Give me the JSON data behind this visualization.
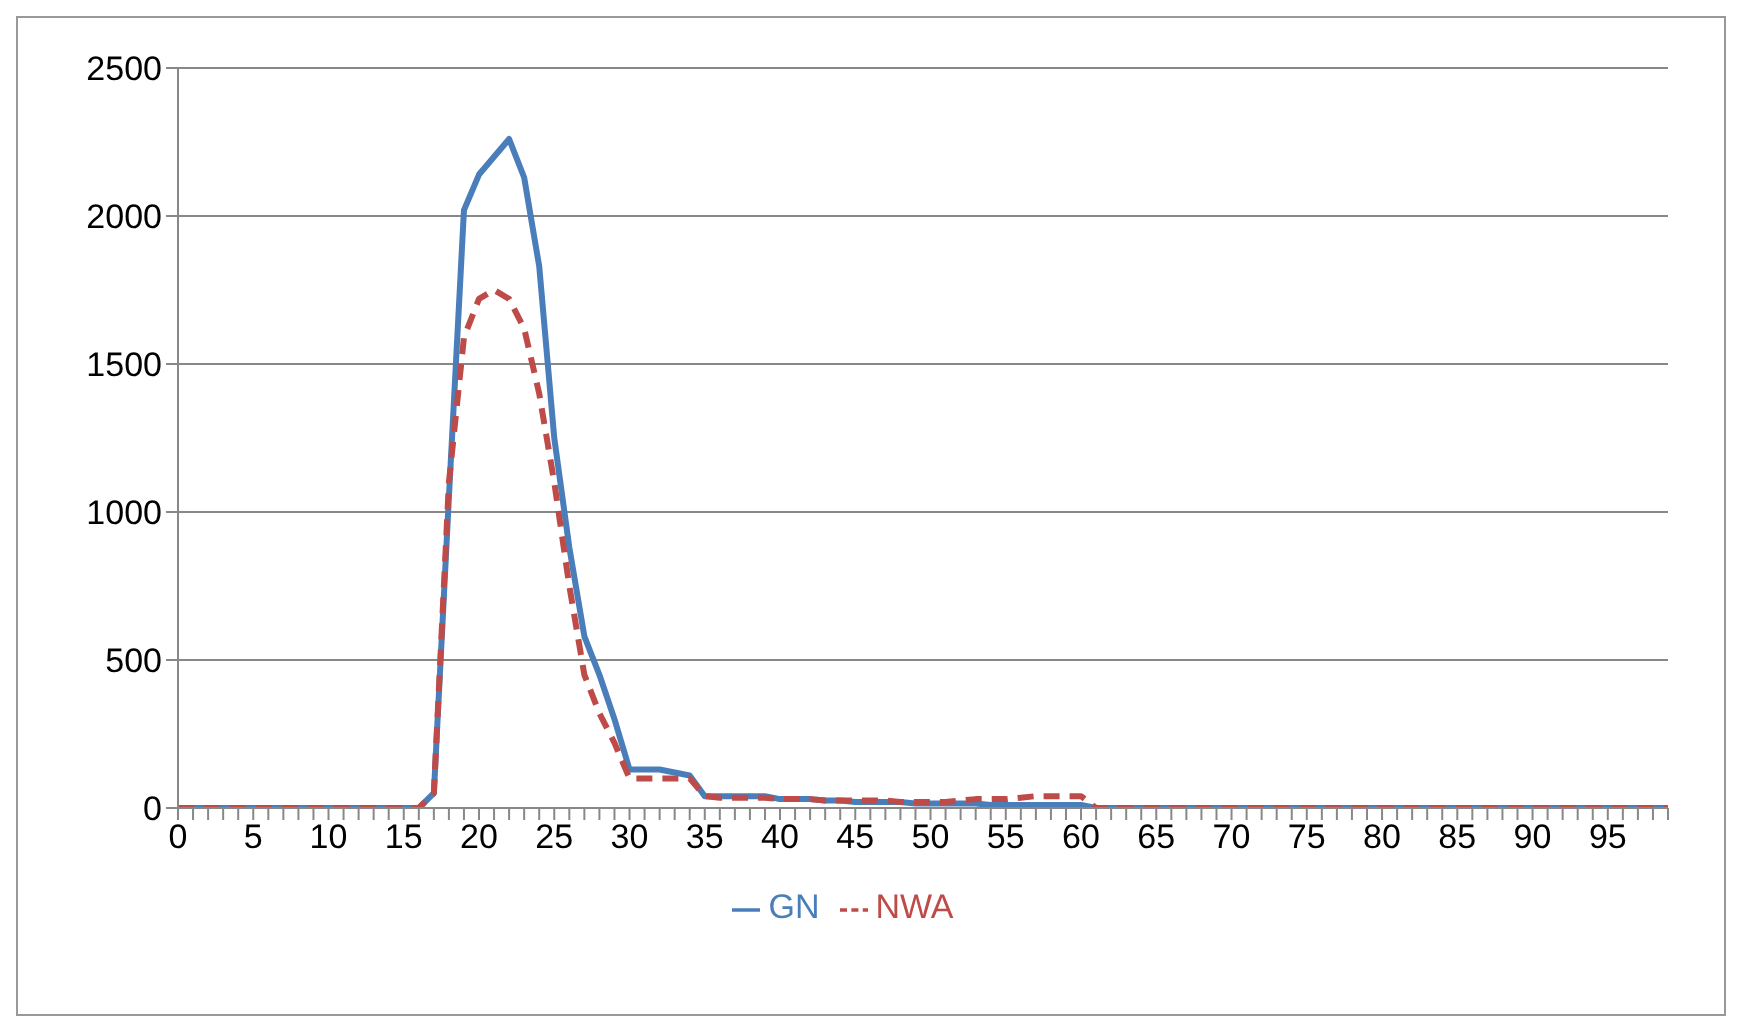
{
  "chart_data": {
    "type": "line",
    "categories": [
      "0",
      null,
      null,
      null,
      null,
      "5",
      null,
      null,
      null,
      null,
      "10",
      null,
      null,
      null,
      null,
      "15",
      null,
      null,
      null,
      null,
      "20",
      null,
      null,
      null,
      null,
      "25",
      null,
      null,
      null,
      null,
      "30",
      null,
      null,
      null,
      null,
      "35",
      null,
      null,
      null,
      null,
      "40",
      null,
      null,
      null,
      null,
      "45",
      null,
      null,
      null,
      null,
      "50",
      null,
      null,
      null,
      null,
      "55",
      null,
      null,
      null,
      null,
      "60",
      null,
      null,
      null,
      null,
      "65",
      null,
      null,
      null,
      null,
      "70",
      null,
      null,
      null,
      null,
      "75",
      null,
      null,
      null,
      null,
      "80",
      null,
      null,
      null,
      null,
      "85",
      null,
      null,
      null,
      null,
      "90",
      null,
      null,
      null,
      null,
      "95",
      null,
      null,
      null,
      null
    ],
    "series": [
      {
        "name": "GN",
        "color": "#4a7ebb",
        "line_style": "solid",
        "values": [
          0,
          0,
          0,
          0,
          0,
          0,
          0,
          0,
          0,
          0,
          0,
          0,
          0,
          0,
          0,
          0,
          0,
          50,
          1050,
          2020,
          2140,
          2200,
          2260,
          2130,
          1830,
          1250,
          880,
          580,
          450,
          300,
          130,
          130,
          130,
          120,
          110,
          40,
          40,
          40,
          40,
          40,
          30,
          30,
          30,
          25,
          25,
          20,
          20,
          20,
          20,
          15,
          15,
          15,
          15,
          15,
          10,
          10,
          10,
          10,
          10,
          10,
          10,
          0,
          0,
          0,
          0,
          0,
          0,
          0,
          0,
          0,
          0,
          0,
          0,
          0,
          0,
          0,
          0,
          0,
          0,
          0,
          0,
          0,
          0,
          0,
          0,
          0,
          0,
          0,
          0,
          0,
          0,
          0,
          0,
          0,
          0,
          0,
          0,
          0,
          0,
          0
        ]
      },
      {
        "name": "NWA",
        "color": "#be4b48",
        "line_style": "dashed",
        "values": [
          0,
          0,
          0,
          0,
          0,
          0,
          0,
          0,
          0,
          0,
          0,
          0,
          0,
          0,
          0,
          0,
          0,
          50,
          1100,
          1590,
          1720,
          1750,
          1720,
          1620,
          1400,
          1100,
          750,
          450,
          320,
          220,
          100,
          100,
          100,
          100,
          100,
          40,
          35,
          35,
          35,
          35,
          30,
          30,
          30,
          25,
          25,
          25,
          25,
          25,
          20,
          20,
          20,
          20,
          25,
          30,
          30,
          30,
          35,
          40,
          40,
          40,
          40,
          0,
          0,
          0,
          0,
          0,
          0,
          0,
          0,
          0,
          0,
          0,
          0,
          0,
          0,
          0,
          0,
          0,
          0,
          0,
          0,
          0,
          0,
          0,
          0,
          0,
          0,
          0,
          0,
          0,
          0,
          0,
          0,
          0,
          0,
          0,
          0,
          0,
          0,
          0
        ]
      }
    ],
    "ylim": [
      0,
      2500
    ],
    "yticks": [
      0,
      500,
      1000,
      1500,
      2000,
      2500
    ],
    "grid": "y",
    "legend": "bottom",
    "marker": "none"
  }
}
